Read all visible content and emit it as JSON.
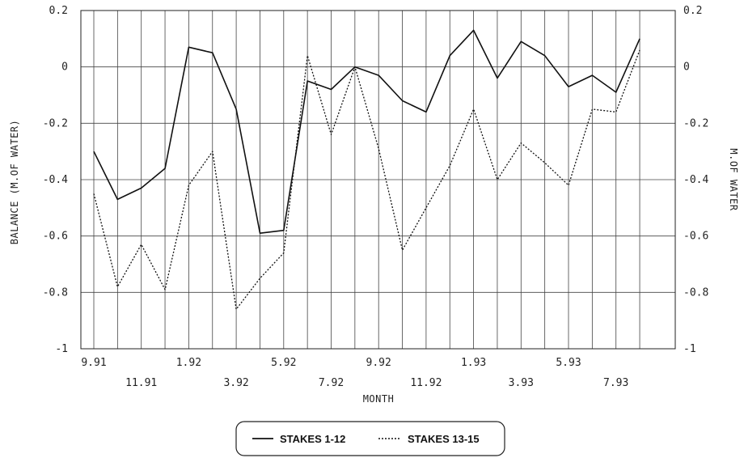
{
  "chart_data": {
    "type": "line",
    "xlabel": "MONTH",
    "ylabel_left": "BALANCE (M.OF WATER)",
    "ylabel_right": "M.OF WATER",
    "ylim": [
      -1,
      0.2
    ],
    "y_ticks": [
      "0.2",
      "0",
      "-0.2",
      "-0.4",
      "-0.6",
      "-0.8",
      "-1"
    ],
    "x_tick_labels_row1": [
      "9.91",
      "1.92",
      "5.92",
      "9.92",
      "1.93",
      "5.93"
    ],
    "x_tick_labels_row2": [
      "11.91",
      "3.92",
      "7.92",
      "11.92",
      "3.93",
      "7.93"
    ],
    "x": [
      "9.91",
      "10.91",
      "11.91",
      "12.91",
      "1.92",
      "2.92",
      "3.92",
      "4.92",
      "5.92",
      "6.92",
      "7.92",
      "8.92",
      "9.92",
      "10.92",
      "11.92",
      "12.92",
      "1.93",
      "2.93",
      "3.93",
      "4.93",
      "5.93",
      "6.93",
      "7.93",
      "8.93"
    ],
    "grid": true,
    "legend_position": "bottom-center",
    "series": [
      {
        "name": "STAKES 1-12",
        "style": "solid",
        "values": [
          -0.3,
          -0.47,
          -0.43,
          -0.36,
          0.07,
          0.05,
          -0.15,
          -0.59,
          -0.58,
          -0.05,
          -0.08,
          0.0,
          -0.03,
          -0.12,
          -0.16,
          0.04,
          0.13,
          -0.04,
          0.09,
          0.04,
          -0.07,
          -0.03,
          -0.09,
          0.1
        ]
      },
      {
        "name": "STAKES 13-15",
        "style": "dotted",
        "values": [
          -0.45,
          -0.78,
          -0.63,
          -0.79,
          -0.42,
          -0.3,
          -0.86,
          -0.75,
          -0.66,
          0.04,
          -0.24,
          0.0,
          -0.29,
          -0.65,
          -0.5,
          -0.35,
          -0.15,
          -0.4,
          -0.27,
          -0.34,
          -0.42,
          -0.15,
          -0.16,
          0.06
        ]
      }
    ]
  }
}
